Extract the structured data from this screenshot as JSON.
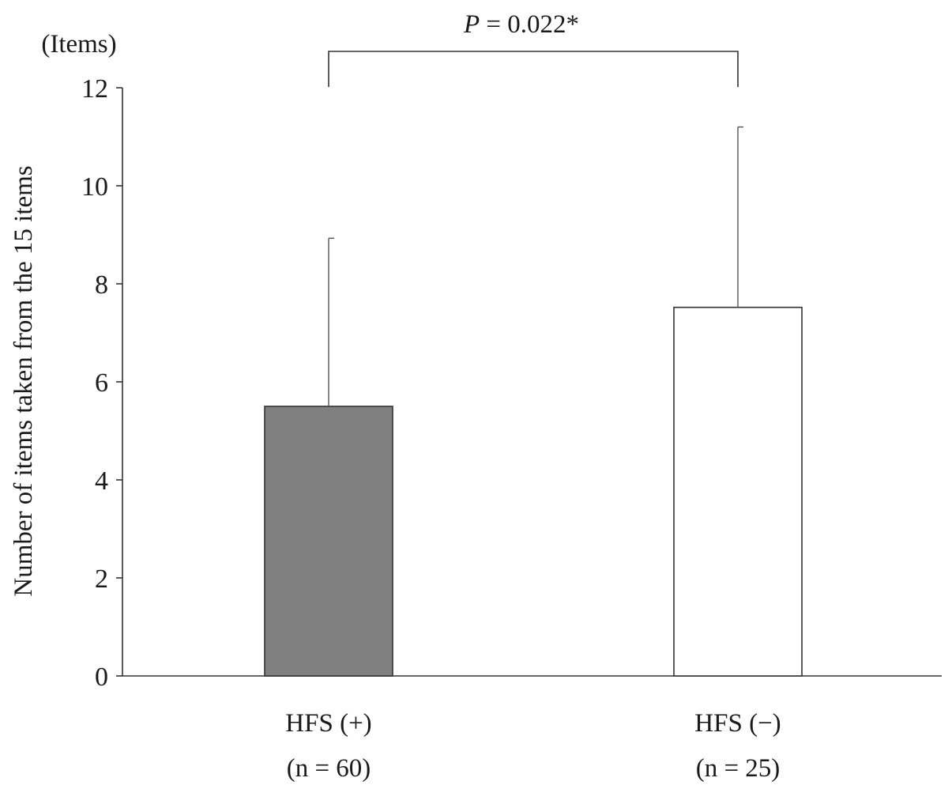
{
  "chart_data": {
    "type": "bar",
    "categories": [
      "HFS (+)",
      "HFS (−)"
    ],
    "category_sublabels": [
      "(n = 60)",
      "(n = 25)"
    ],
    "values": [
      5.5,
      7.52
    ],
    "error_upper": [
      8.93,
      11.2
    ],
    "bar_colors": [
      "#808080",
      "#ffffff"
    ],
    "ylabel": "Number of items taken from the 15 items",
    "yunit": "(Items)",
    "ylim": [
      0,
      12
    ],
    "yticks": [
      0,
      2,
      4,
      6,
      8,
      10,
      12
    ],
    "grid": false,
    "annotation": {
      "p_symbol": "P",
      "p_text": " = 0.022*",
      "spans": [
        0,
        1
      ]
    }
  }
}
